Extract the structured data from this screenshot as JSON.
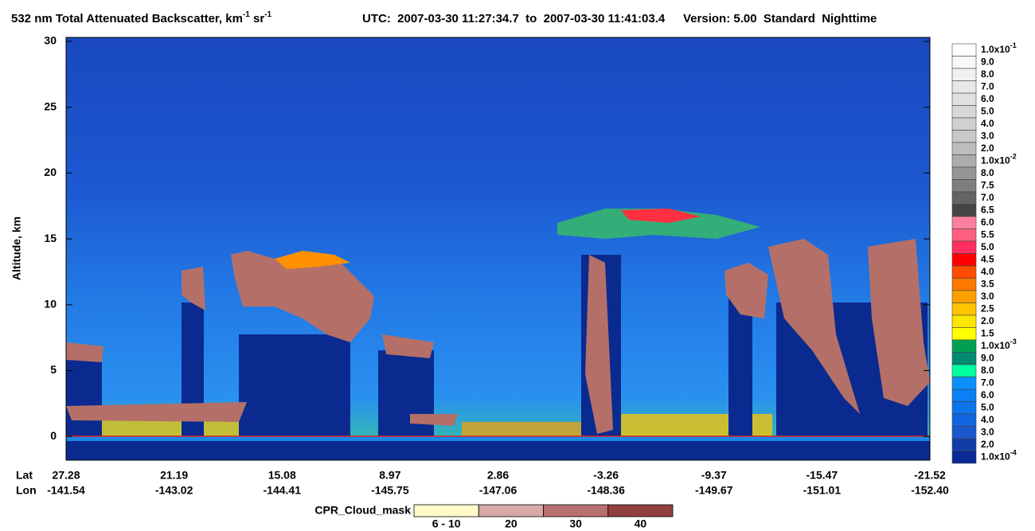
{
  "chart_data": {
    "type": "curtain",
    "title_parts": [
      "532 nm Total Attenuated Backscatter, km",
      "-1",
      " sr",
      "-1"
    ],
    "utc": "UTC:  2007-03-30 11:27:34.7  to  2007-03-30 11:41:03.4",
    "version": "Version: 5.00  Standard  Nighttime",
    "y_label": "Altitude, km",
    "ylim": [
      -1.8,
      30.3
    ],
    "yticks": [
      0,
      5,
      10,
      15,
      20,
      25,
      30
    ],
    "x_row_labels": {
      "lat": "Lat",
      "lon": "Lon"
    },
    "x_labels": [
      {
        "lat": "27.28",
        "lon": "-141.54"
      },
      {
        "lat": "21.19",
        "lon": "-143.02"
      },
      {
        "lat": "15.08",
        "lon": "-144.41"
      },
      {
        "lat": "8.97",
        "lon": "-145.75"
      },
      {
        "lat": "2.86",
        "lon": "-147.06"
      },
      {
        "lat": "-3.26",
        "lon": "-148.36"
      },
      {
        "lat": "-9.37",
        "lon": "-149.67"
      },
      {
        "lat": "-15.47",
        "lon": "-151.01"
      },
      {
        "lat": "-21.52",
        "lon": "-152.40"
      }
    ],
    "colorbar": [
      {
        "value": 0.1,
        "label": "1.0x10",
        "exponent": "-1",
        "color": "#ffffff"
      },
      {
        "value": 0.09,
        "label": "9.0",
        "color": "#f8f8f8"
      },
      {
        "value": 0.08,
        "label": "8.0",
        "color": "#f0f0f0"
      },
      {
        "value": 0.07,
        "label": "7.0",
        "color": "#e8e8e8"
      },
      {
        "value": 0.06,
        "label": "6.0",
        "color": "#e0e0e0"
      },
      {
        "value": 0.05,
        "label": "5.0",
        "color": "#d8d8d8"
      },
      {
        "value": 0.04,
        "label": "4.0",
        "color": "#d0d0d0"
      },
      {
        "value": 0.03,
        "label": "3.0",
        "color": "#c8c8c8"
      },
      {
        "value": 0.02,
        "label": "2.0",
        "color": "#bdbdbd"
      },
      {
        "value": 0.01,
        "label": "1.0x10",
        "exponent": "-2",
        "color": "#acacac"
      },
      {
        "value": 0.008,
        "label": "8.0",
        "color": "#969696"
      },
      {
        "value": 0.0075,
        "label": "7.5",
        "color": "#7e7e7e"
      },
      {
        "value": 0.007,
        "label": "7.0",
        "color": "#646464"
      },
      {
        "value": 0.0065,
        "label": "6.5",
        "color": "#454545"
      },
      {
        "value": 0.006,
        "label": "6.0",
        "color": "#ff7fa0"
      },
      {
        "value": 0.0055,
        "label": "5.5",
        "color": "#ff5f7f"
      },
      {
        "value": 0.005,
        "label": "5.0",
        "color": "#ff3060"
      },
      {
        "value": 0.0045,
        "label": "4.5",
        "color": "#ff0000"
      },
      {
        "value": 0.004,
        "label": "4.0",
        "color": "#ff4c00"
      },
      {
        "value": 0.0035,
        "label": "3.5",
        "color": "#ff7800"
      },
      {
        "value": 0.003,
        "label": "3.0",
        "color": "#ffa000"
      },
      {
        "value": 0.0025,
        "label": "2.5",
        "color": "#ffc400"
      },
      {
        "value": 0.002,
        "label": "2.0",
        "color": "#ffe600"
      },
      {
        "value": 0.0015,
        "label": "1.5",
        "color": "#ffff00"
      },
      {
        "value": 0.001,
        "label": "1.0x10",
        "exponent": "-3",
        "color": "#00a050"
      },
      {
        "value": 0.0009,
        "label": "9.0",
        "color": "#008a70"
      },
      {
        "value": 0.0008,
        "label": "8.0",
        "color": "#00ffa0"
      },
      {
        "value": 0.0007,
        "label": "7.0",
        "color": "#0a90ff"
      },
      {
        "value": 0.0006,
        "label": "6.0",
        "color": "#0a80f4"
      },
      {
        "value": 0.0005,
        "label": "5.0",
        "color": "#0c74ec"
      },
      {
        "value": 0.0004,
        "label": "4.0",
        "color": "#1066e0"
      },
      {
        "value": 0.0003,
        "label": "3.0",
        "color": "#1a58d0"
      },
      {
        "value": 0.0002,
        "label": "2.0",
        "color": "#123ca8"
      },
      {
        "value": 0.0001,
        "label": "1.0x10",
        "exponent": "-4",
        "color": "#0a2896"
      }
    ],
    "cpr_legend": {
      "title": "CPR_Cloud_mask",
      "entries": [
        {
          "label": "6 - 10",
          "color": "#fffac8"
        },
        {
          "label": "20",
          "color": "#d8a8a8"
        },
        {
          "label": "30",
          "color": "#b87070"
        },
        {
          "label": "40",
          "color": "#904040"
        }
      ]
    }
  }
}
